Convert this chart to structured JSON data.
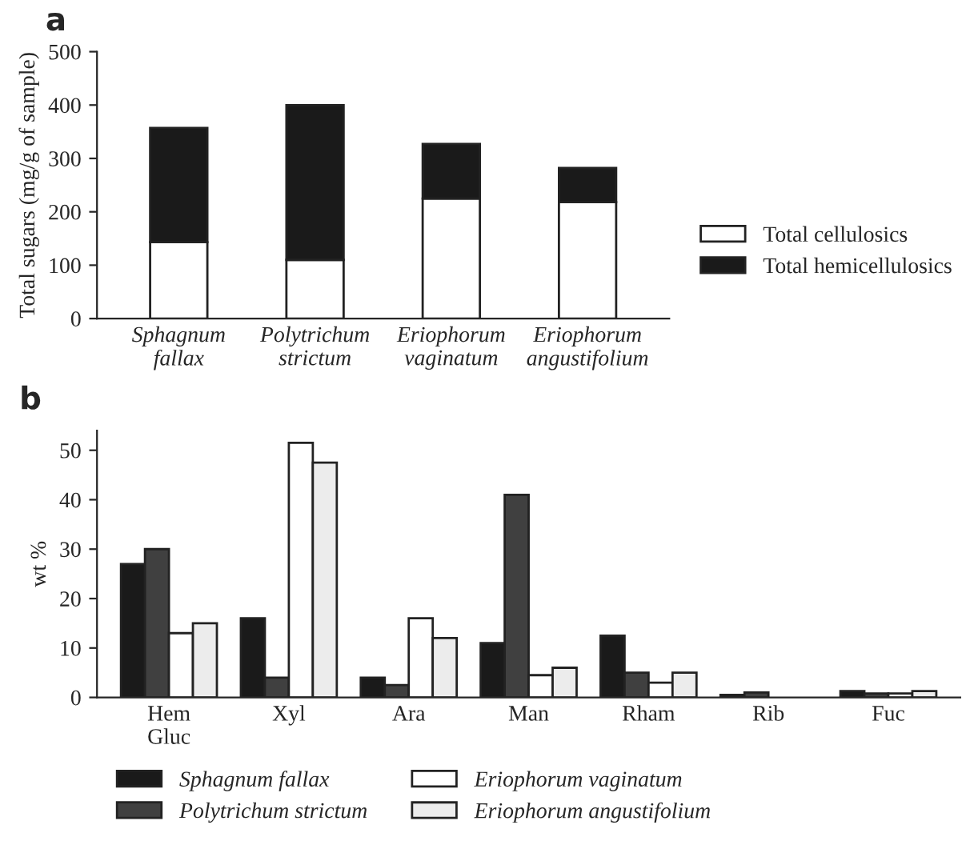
{
  "chart_data": [
    {
      "type": "bar",
      "stacked": true,
      "annotations": [
        "a"
      ],
      "ylabel": "Total sugars (mg/g of sample)",
      "categories": [
        "Sphagnum\nfallax",
        "Polytrichum\nstrictum",
        "Eriophorum\nvaginatum",
        "Eriophorum\nangustifolium"
      ],
      "series": [
        {
          "name": "Total cellulosics",
          "color": "#ffffff",
          "values": [
            143,
            110,
            225,
            218
          ]
        },
        {
          "name": "Total hemicellulosics",
          "color": "#1a1a1a",
          "values": [
            214,
            290,
            102,
            64
          ]
        }
      ],
      "ylim": [
        0,
        500
      ],
      "yticks": [
        0,
        100,
        200,
        300,
        400,
        500
      ],
      "grid": false,
      "legend": "right"
    },
    {
      "type": "bar",
      "annotations": [
        "b"
      ],
      "ylabel": "wt %",
      "categories": [
        "Hem\nGluc",
        "Xyl",
        "Ara",
        "Man",
        "Rham",
        "Rib",
        "Fuc"
      ],
      "series": [
        {
          "name": "Sphagnum fallax",
          "color": "#1a1a1a",
          "values": [
            27,
            16,
            4,
            11,
            12.5,
            0.5,
            1.3
          ]
        },
        {
          "name": "Polytrichum strictum",
          "color": "#404040",
          "values": [
            30,
            4,
            2.5,
            41,
            5,
            1,
            0.8
          ]
        },
        {
          "name": "Eriophorum vaginatum",
          "color": "#ffffff",
          "values": [
            13,
            51.5,
            16,
            4.5,
            3,
            null,
            0.8
          ]
        },
        {
          "name": "Eriophorum angustifolium",
          "color": "#ececec",
          "values": [
            15,
            47.5,
            12,
            6,
            5,
            null,
            1.3
          ]
        }
      ],
      "ylim": [
        0,
        54
      ],
      "yticks": [
        0,
        10,
        20,
        30,
        40,
        50
      ],
      "grid": false,
      "legend": "bottom"
    }
  ]
}
